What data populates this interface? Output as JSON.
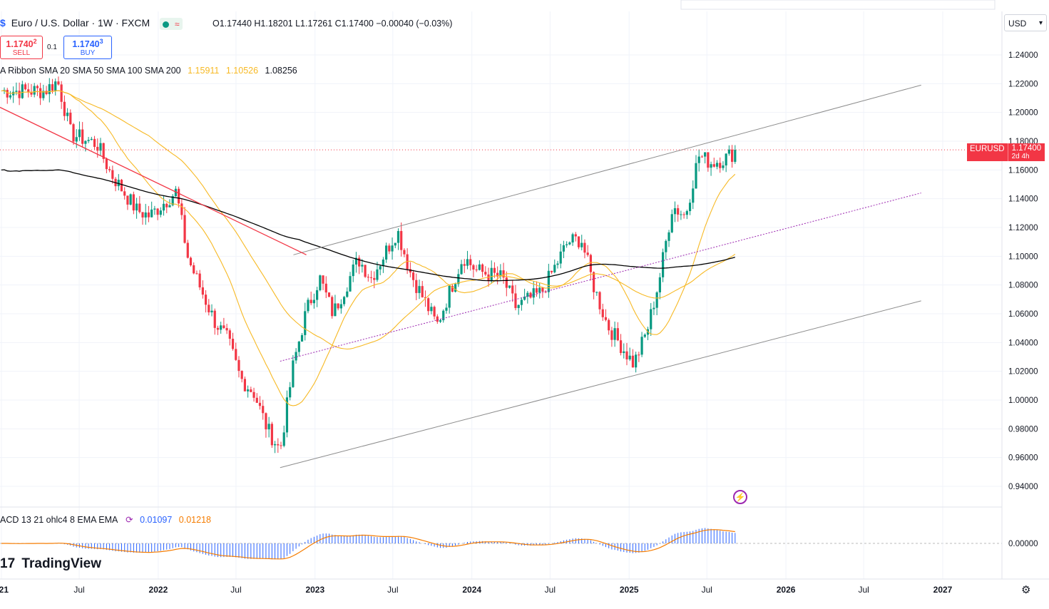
{
  "header": {
    "symbol_title": "Euro / U.S. Dollar · 1W · FXCM",
    "ohlc": "O1.17440 H1.18201 L1.17261 C1.17400 −0.00040 (−0.03%)",
    "sell_price": "1.1740",
    "sell_price_small": "2",
    "sell_label": "SELL",
    "buy_price": "1.1740",
    "buy_price_small": "3",
    "buy_label": "BUY",
    "quantity": "0.1",
    "currency": "USD"
  },
  "ribbon_indicator": {
    "label": "A Ribbon SMA 20 SMA 50 SMA 100 SMA 200",
    "value_1": "1.15911",
    "value_2": "1.10526",
    "value_3": "1.08256"
  },
  "macd_indicator": {
    "label": "ACD 13 21 ohlc4 8 EMA EMA",
    "macd": "0.01097",
    "signal": "0.01218"
  },
  "price_tag": {
    "symbol": "EURUSD",
    "price": "1.17400",
    "countdown": "2d 4h"
  },
  "brand": "TradingView",
  "colors": {
    "up": "#089981",
    "down": "#f23645",
    "ma_fast": "#f7b924",
    "ma_slow": "#000000",
    "macd": "#2962ff",
    "signal": "#f57c00",
    "channel": "#8c8c8c",
    "trend": "#f23645",
    "mid": "#9c27b0"
  },
  "chart_data": {
    "type": "line",
    "series_kind": "candlestick-weekly",
    "title": "Euro / U.S. Dollar · 1W · FXCM",
    "x_axis": {
      "ticks": [
        "021",
        "Jul",
        "2022",
        "Jul",
        "2023",
        "Jul",
        "2024",
        "Jul",
        "2025",
        "Jul",
        "2026",
        "Jul",
        "2027"
      ]
    },
    "y_axis": {
      "ticks": [
        "1.24000",
        "1.22000",
        "1.20000",
        "1.18000",
        "1.16000",
        "1.14000",
        "1.12000",
        "1.10000",
        "1.08000",
        "1.06000",
        "1.04000",
        "1.02000",
        "1.00000",
        "0.98000",
        "0.96000",
        "0.94000"
      ],
      "range": [
        0.93,
        1.25
      ]
    },
    "macd_axis": {
      "ticks": [
        "0.00000"
      ]
    },
    "price_path": [
      [
        "2021-04",
        1.215
      ],
      [
        "2021-05",
        1.222
      ],
      [
        "2021-06",
        1.185
      ],
      [
        "2021-08",
        1.178
      ],
      [
        "2021-09",
        1.158
      ],
      [
        "2021-11",
        1.132
      ],
      [
        "2021-12",
        1.128
      ],
      [
        "2022-02",
        1.145
      ],
      [
        "2022-03",
        1.098
      ],
      [
        "2022-05",
        1.055
      ],
      [
        "2022-06",
        1.042
      ],
      [
        "2022-07",
        1.015
      ],
      [
        "2022-08",
        1.005
      ],
      [
        "2022-09",
        0.98
      ],
      [
        "2022-10",
        0.965
      ],
      [
        "2022-11",
        1.025
      ],
      [
        "2022-12",
        1.062
      ],
      [
        "2023-01",
        1.085
      ],
      [
        "2023-02",
        1.06
      ],
      [
        "2023-04",
        1.098
      ],
      [
        "2023-05",
        1.085
      ],
      [
        "2023-07",
        1.118
      ],
      [
        "2023-08",
        1.088
      ],
      [
        "2023-10",
        1.052
      ],
      [
        "2023-12",
        1.1
      ],
      [
        "2024-01",
        1.09
      ],
      [
        "2024-03",
        1.085
      ],
      [
        "2024-04",
        1.065
      ],
      [
        "2024-06",
        1.075
      ],
      [
        "2024-08",
        1.11
      ],
      [
        "2024-09",
        1.112
      ],
      [
        "2024-10",
        1.078
      ],
      [
        "2024-11",
        1.052
      ],
      [
        "2025-01",
        1.025
      ],
      [
        "2025-02",
        1.048
      ],
      [
        "2025-03",
        1.083
      ],
      [
        "2025-04",
        1.135
      ],
      [
        "2025-05",
        1.128
      ],
      [
        "2025-06",
        1.17
      ],
      [
        "2025-07",
        1.165
      ],
      [
        "2025-08",
        1.168
      ],
      [
        "2025-09",
        1.174
      ]
    ],
    "last_price": 1.174
  }
}
